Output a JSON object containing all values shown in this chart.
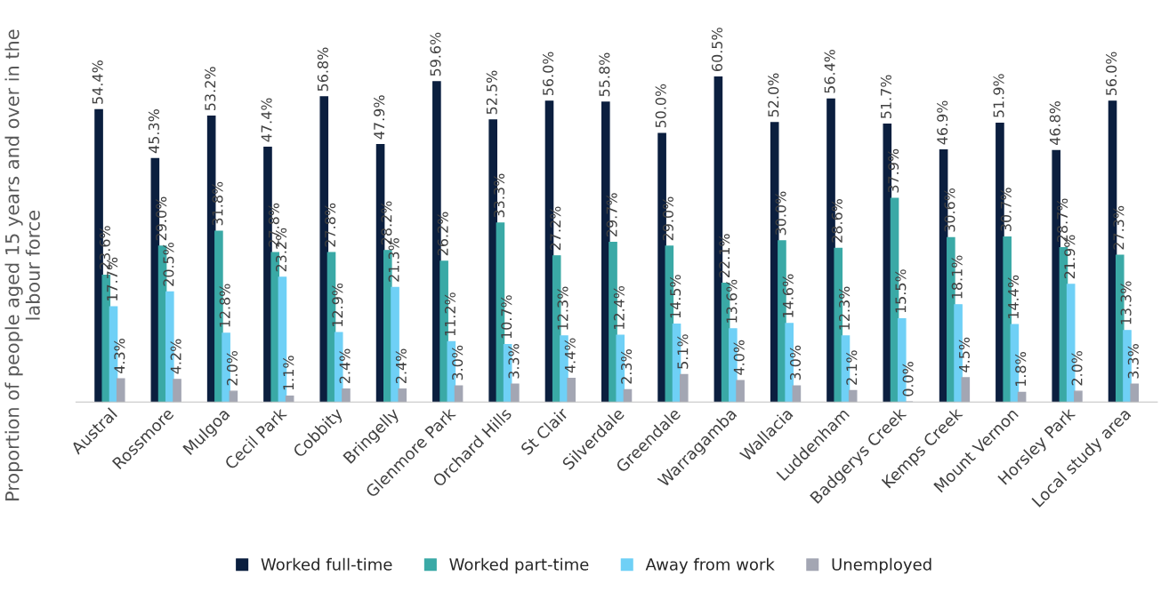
{
  "chart_data": {
    "type": "bar",
    "ylabel": "Proportion of people aged 15 years and over in the labour force",
    "categories": [
      "Austral",
      "Rossmore",
      "Mulgoa",
      "Cecil Park",
      "Cobbity",
      "Bringelly",
      "Glenmore Park",
      "Orchard Hills",
      "St Clair",
      "Silverdale",
      "Greendale",
      "Warragamba",
      "Wallacia",
      "Luddenham",
      "Badgerys Creek",
      "Kemps Creek",
      "Mount Vernon",
      "Horsley Park",
      "Local study area"
    ],
    "series": [
      {
        "name": "Worked full-time",
        "color": "#0b1f3f",
        "values": [
          54.4,
          45.3,
          53.2,
          47.4,
          56.8,
          47.9,
          59.6,
          52.5,
          56.0,
          55.8,
          50.0,
          60.5,
          52.0,
          56.4,
          51.7,
          46.9,
          51.9,
          46.8,
          56.0
        ],
        "value_labels": [
          "54.4%",
          "45.3%",
          "53.2%",
          "47.4%",
          "56.8%",
          "47.9%",
          "59.6%",
          "52.5%",
          "56.0%",
          "55.8%",
          "50.0%",
          "60.5%",
          "52.0%",
          "56.4%",
          "51.7%",
          "46.9%",
          "51.9%",
          "46.8%",
          "56.0%"
        ]
      },
      {
        "name": "Worked part-time",
        "color": "#3aa9a6",
        "values": [
          23.6,
          29.0,
          31.8,
          27.8,
          27.8,
          28.2,
          26.2,
          33.3,
          27.2,
          29.7,
          29.0,
          22.1,
          30.0,
          28.6,
          37.9,
          30.6,
          30.7,
          28.7,
          27.3
        ],
        "value_labels": [
          "23.6%",
          "29.0%",
          "31.8%",
          "27.8%",
          "27.8%",
          "28.2%",
          "26.2%",
          "33.3%",
          "27.2%",
          "29.7%",
          "29.0%",
          "22.1%",
          "30.0%",
          "28.6%",
          "37.9%",
          "30.6%",
          "30.7%",
          "28.7%",
          "27.3%"
        ]
      },
      {
        "name": "Away from work",
        "color": "#6fd0f6",
        "values": [
          17.7,
          20.5,
          12.8,
          23.2,
          12.9,
          21.3,
          11.2,
          10.7,
          12.3,
          12.4,
          14.5,
          13.6,
          14.6,
          12.3,
          15.5,
          18.1,
          14.4,
          21.9,
          13.3
        ],
        "value_labels": [
          "17.7%",
          "20.5%",
          "12.8%",
          "23.2%",
          "12.9%",
          "21.3%",
          "11.2%",
          "10.7%",
          "12.3%",
          "12.4%",
          "14.5%",
          "13.6%",
          "14.6%",
          "12.3%",
          "15.5%",
          "18.1%",
          "14.4%",
          "21.9%",
          "13.3%"
        ]
      },
      {
        "name": "Unemployed",
        "color": "#a3a6b3",
        "values": [
          4.3,
          4.2,
          2.0,
          1.1,
          2.4,
          2.4,
          3.0,
          3.3,
          4.4,
          2.3,
          5.1,
          4.0,
          3.0,
          2.1,
          0.0,
          4.5,
          1.8,
          2.0,
          3.3
        ],
        "value_labels": [
          "4.3%",
          "4.2%",
          "2.0%",
          "1.1%",
          "2.4%",
          "2.4%",
          "3.0%",
          "3.3%",
          "4.4%",
          "2.3%",
          "5.1%",
          "4.0%",
          "3.0%",
          "2.1%",
          "0.0%",
          "4.5%",
          "1.8%",
          "2.0%",
          "3.3%"
        ]
      }
    ],
    "legend": "bottom",
    "grid": false
  }
}
